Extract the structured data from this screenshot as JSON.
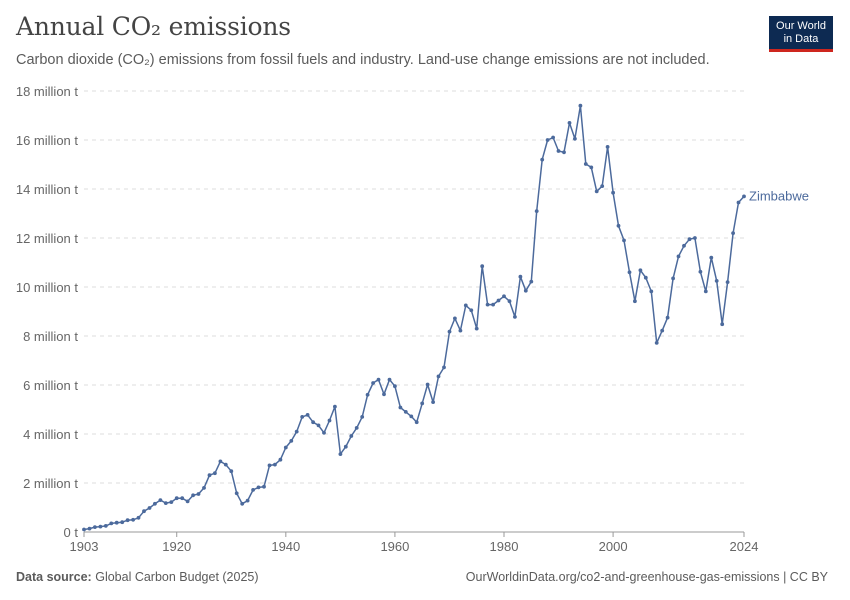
{
  "header": {
    "title": "Annual CO₂ emissions",
    "subtitle": "Carbon dioxide (CO₂) emissions from fossil fuels and industry. Land-use change emissions are not included."
  },
  "logo": {
    "line1": "Our World",
    "line2": "in Data"
  },
  "footer": {
    "source_label": "Data source:",
    "source_text": "Global Carbon Budget (2025)",
    "url_text": "OurWorldinData.org/co2-and-greenhouse-gas-emissions | CC BY"
  },
  "colors": {
    "series": "#4c6a9c",
    "grid": "#dddddd",
    "axis": "#999999",
    "text": "#666666"
  },
  "chart_data": {
    "type": "line",
    "title": "Annual CO₂ emissions",
    "ylim": [
      0,
      18
    ],
    "y_unit": "million t",
    "y_ticks": [
      0,
      2,
      4,
      6,
      8,
      10,
      12,
      14,
      16,
      18
    ],
    "y_tick_labels": [
      "0 t",
      "2 million t",
      "4 million t",
      "6 million t",
      "8 million t",
      "10 million t",
      "12 million t",
      "14 million t",
      "16 million t",
      "18 million t"
    ],
    "x_ticks": [
      1903,
      1920,
      1940,
      1960,
      1980,
      2000,
      2024
    ],
    "xlim": [
      1903,
      2024
    ],
    "grid": true,
    "series": [
      {
        "name": "Zimbabwe",
        "x": [
          1903,
          1904,
          1905,
          1906,
          1907,
          1908,
          1909,
          1910,
          1911,
          1912,
          1913,
          1914,
          1915,
          1916,
          1917,
          1918,
          1919,
          1920,
          1921,
          1922,
          1923,
          1924,
          1925,
          1926,
          1927,
          1928,
          1929,
          1930,
          1931,
          1932,
          1933,
          1934,
          1935,
          1936,
          1937,
          1938,
          1939,
          1940,
          1941,
          1942,
          1943,
          1944,
          1945,
          1946,
          1947,
          1948,
          1949,
          1950,
          1951,
          1952,
          1953,
          1954,
          1955,
          1956,
          1957,
          1958,
          1959,
          1960,
          1961,
          1962,
          1963,
          1964,
          1965,
          1966,
          1967,
          1968,
          1969,
          1970,
          1971,
          1972,
          1973,
          1974,
          1975,
          1976,
          1977,
          1978,
          1979,
          1980,
          1981,
          1982,
          1983,
          1984,
          1985,
          1986,
          1987,
          1988,
          1989,
          1990,
          1991,
          1992,
          1993,
          1994,
          1995,
          1996,
          1997,
          1998,
          1999,
          2000,
          2001,
          2002,
          2003,
          2004,
          2005,
          2006,
          2007,
          2008,
          2009,
          2010,
          2011,
          2012,
          2013,
          2014,
          2015,
          2016,
          2017,
          2018,
          2019,
          2020,
          2021,
          2022,
          2023,
          2024
        ],
        "values": [
          0.1,
          0.14,
          0.2,
          0.22,
          0.25,
          0.35,
          0.38,
          0.4,
          0.48,
          0.5,
          0.58,
          0.85,
          0.98,
          1.15,
          1.3,
          1.18,
          1.22,
          1.38,
          1.38,
          1.25,
          1.5,
          1.55,
          1.8,
          2.32,
          2.4,
          2.88,
          2.75,
          2.48,
          1.58,
          1.15,
          1.28,
          1.72,
          1.82,
          1.85,
          2.72,
          2.75,
          2.95,
          3.45,
          3.72,
          4.1,
          4.7,
          4.78,
          4.48,
          4.35,
          4.05,
          4.55,
          5.12,
          3.18,
          3.48,
          3.92,
          4.25,
          4.7,
          5.6,
          6.08,
          6.22,
          5.62,
          6.22,
          5.95,
          5.08,
          4.9,
          4.72,
          4.48,
          5.25,
          6.02,
          5.3,
          6.35,
          6.72,
          8.18,
          8.72,
          8.22,
          9.25,
          9.05,
          8.3,
          10.85,
          9.28,
          9.28,
          9.45,
          9.62,
          9.42,
          8.78,
          10.42,
          9.85,
          10.22,
          13.1,
          15.2,
          16.0,
          16.1,
          15.55,
          15.5,
          16.7,
          16.05,
          17.4,
          15.02,
          14.88,
          13.9,
          14.12,
          15.72,
          13.85,
          12.5,
          11.9,
          10.6,
          9.42,
          10.68,
          10.38,
          9.82,
          7.72,
          8.22,
          8.75,
          10.35,
          11.25,
          11.68,
          11.95,
          12.0,
          10.62,
          9.82,
          11.2,
          10.25,
          8.48,
          10.2,
          12.2,
          13.45,
          13.7
        ]
      }
    ]
  }
}
